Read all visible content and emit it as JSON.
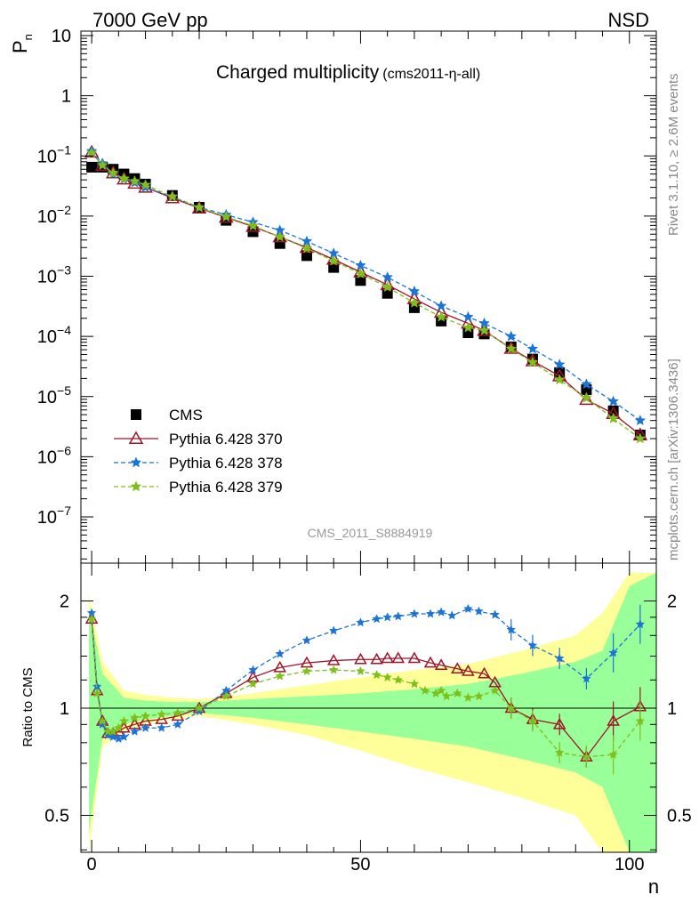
{
  "header": {
    "left": "7000 GeV pp",
    "right": "NSD"
  },
  "side_text": {
    "rivet": "Rivet 3.1.10, ≥ 2.6M events",
    "mcplots": "mcplots.cern.ch [arXiv:1306.3436]"
  },
  "analysis_id": "CMS_2011_S8884919",
  "colors": {
    "cms": "#000000",
    "p370": "#a0142a",
    "p378": "#1b74d8",
    "p379": "#7fbf1a",
    "band_yellow": "#ffff99",
    "band_green": "#99ff99"
  },
  "chart_data": [
    {
      "type": "scatter",
      "title": "Charged multiplicity",
      "subtitle": "(cms2011-η-all)",
      "xlabel": "n",
      "ylabel": "P_n",
      "yscale": "log",
      "ylim": [
        2e-08,
        10
      ],
      "xlim": [
        -2,
        105
      ],
      "ytick_labels": [
        "10",
        "1",
        "10^-1",
        "10^-2",
        "10^-3",
        "10^-4",
        "10^-5",
        "10^-6",
        "10^-7"
      ],
      "legend_position": "bottom-left",
      "series": [
        {
          "name": "CMS",
          "marker": "square",
          "color": "#000000",
          "x": [
            0,
            2,
            4,
            6,
            8,
            10,
            15,
            20,
            25,
            30,
            35,
            40,
            45,
            50,
            55,
            60,
            65,
            70,
            73,
            78,
            82,
            87,
            92,
            97,
            102
          ],
          "y": [
            0.065,
            0.065,
            0.06,
            0.05,
            0.042,
            0.034,
            0.022,
            0.014,
            0.0085,
            0.0055,
            0.0035,
            0.0022,
            0.0014,
            0.00085,
            0.00052,
            0.0003,
            0.00018,
            0.000115,
            0.00011,
            6.7e-05,
            4.2e-05,
            2.5e-05,
            1.3e-05,
            5.8e-06,
            2.3e-06
          ]
        },
        {
          "name": "Pythia 6.428 370",
          "marker": "triangle",
          "color": "#a0142a",
          "line": "solid",
          "x": [
            0,
            2,
            4,
            6,
            8,
            10,
            15,
            20,
            25,
            30,
            35,
            40,
            45,
            50,
            55,
            60,
            65,
            70,
            73,
            78,
            82,
            87,
            92,
            97,
            102
          ],
          "y": [
            0.115,
            0.069,
            0.052,
            0.041,
            0.035,
            0.03,
            0.02,
            0.0135,
            0.0095,
            0.0067,
            0.0045,
            0.003,
            0.0019,
            0.00117,
            0.00072,
            0.00042,
            0.00025,
            0.000165,
            0.000125,
            6.3e-05,
            3.9e-05,
            2.2e-05,
            8.9e-06,
            5.2e-06,
            2.3e-06
          ]
        },
        {
          "name": "Pythia 6.428 378",
          "marker": "star",
          "color": "#1b74d8",
          "line": "dashed",
          "x": [
            0,
            2,
            4,
            6,
            8,
            10,
            15,
            20,
            25,
            30,
            35,
            40,
            45,
            50,
            55,
            60,
            65,
            70,
            73,
            78,
            82,
            87,
            92,
            97,
            102
          ],
          "y": [
            0.12,
            0.075,
            0.05,
            0.041,
            0.036,
            0.03,
            0.021,
            0.014,
            0.0105,
            0.0079,
            0.0058,
            0.0038,
            0.0024,
            0.00151,
            0.00096,
            0.00056,
            0.00032,
            0.00021,
            0.000165,
            0.0001,
            6.2e-05,
            3.4e-05,
            1.6e-05,
            8.3e-06,
            4e-06
          ]
        },
        {
          "name": "Pythia 6.428 379",
          "marker": "star",
          "color": "#7fbf1a",
          "line": "dashed",
          "x": [
            0,
            2,
            4,
            6,
            8,
            10,
            15,
            20,
            25,
            30,
            35,
            40,
            45,
            50,
            55,
            60,
            65,
            70,
            73,
            78,
            82,
            87,
            92,
            97,
            102
          ],
          "y": [
            0.112,
            0.07,
            0.052,
            0.042,
            0.038,
            0.033,
            0.021,
            0.0138,
            0.0097,
            0.0069,
            0.0045,
            0.0029,
            0.0018,
            0.0011,
            0.00066,
            0.00036,
            0.00021,
            0.00014,
            0.000125,
            6.2e-05,
            3.7e-05,
            1.9e-05,
            9.5e-06,
            4.3e-06,
            2e-06
          ]
        }
      ]
    },
    {
      "type": "line",
      "ylabel": "Ratio to CMS",
      "xlabel": "n",
      "yscale": "log",
      "ylim": [
        0.35,
        2.4
      ],
      "xlim": [
        -2,
        105
      ],
      "xtick_labels": [
        "0",
        "50",
        "100"
      ],
      "ytick_labels": [
        "0.5",
        "1",
        "2"
      ],
      "reference_line": 1,
      "band_green": {
        "x": [
          -0.5,
          2,
          6,
          10,
          15,
          20,
          30,
          40,
          50,
          60,
          70,
          80,
          90,
          95,
          100,
          105
        ],
        "lo": [
          0.45,
          0.82,
          0.9,
          0.93,
          0.95,
          0.97,
          0.94,
          0.9,
          0.86,
          0.82,
          0.78,
          0.72,
          0.66,
          0.6,
          0.35,
          0.35
        ],
        "hi": [
          1.9,
          1.25,
          1.07,
          1.05,
          1.04,
          1.04,
          1.06,
          1.08,
          1.1,
          1.13,
          1.17,
          1.25,
          1.35,
          1.45,
          2.2,
          2.4
        ]
      },
      "band_yellow": {
        "x": [
          -0.5,
          2,
          6,
          10,
          15,
          20,
          30,
          40,
          50,
          60,
          70,
          80,
          90,
          95,
          100,
          105
        ],
        "lo": [
          0.35,
          0.78,
          0.86,
          0.9,
          0.93,
          0.95,
          0.9,
          0.84,
          0.76,
          0.68,
          0.62,
          0.56,
          0.5,
          0.35,
          0.35,
          0.35
        ],
        "hi": [
          2.1,
          1.35,
          1.12,
          1.09,
          1.07,
          1.06,
          1.1,
          1.16,
          1.22,
          1.28,
          1.33,
          1.45,
          1.6,
          1.85,
          2.4,
          2.4
        ]
      },
      "series": [
        {
          "name": "Pythia 6.428 370",
          "color": "#a0142a",
          "x": [
            0,
            1,
            2,
            3,
            4,
            5,
            6,
            8,
            10,
            13,
            16,
            20,
            25,
            30,
            35,
            40,
            45,
            50,
            53,
            55,
            57,
            60,
            63,
            65,
            68,
            70,
            73,
            75,
            78,
            82,
            87,
            92,
            97,
            102
          ],
          "y": [
            1.78,
            1.12,
            0.92,
            0.85,
            0.85,
            0.86,
            0.88,
            0.9,
            0.92,
            0.93,
            0.95,
            1.0,
            1.1,
            1.22,
            1.3,
            1.34,
            1.36,
            1.37,
            1.37,
            1.38,
            1.38,
            1.38,
            1.34,
            1.32,
            1.29,
            1.27,
            1.25,
            1.18,
            1.0,
            0.93,
            0.9,
            0.73,
            0.92,
            1.01
          ]
        },
        {
          "name": "Pythia 6.428 378",
          "color": "#1b74d8",
          "x": [
            0,
            1,
            2,
            3,
            4,
            5,
            6,
            8,
            10,
            13,
            16,
            20,
            25,
            30,
            35,
            40,
            45,
            50,
            53,
            55,
            57,
            60,
            63,
            65,
            67,
            70,
            72,
            75,
            78,
            82,
            87,
            92,
            97,
            102
          ],
          "y": [
            1.85,
            1.15,
            0.9,
            0.84,
            0.83,
            0.82,
            0.83,
            0.86,
            0.88,
            0.88,
            0.9,
            0.98,
            1.12,
            1.28,
            1.42,
            1.55,
            1.65,
            1.74,
            1.78,
            1.8,
            1.81,
            1.84,
            1.84,
            1.86,
            1.82,
            1.9,
            1.87,
            1.83,
            1.66,
            1.5,
            1.38,
            1.21,
            1.43,
            1.72
          ]
        },
        {
          "name": "Pythia 6.428 379",
          "color": "#7fbf1a",
          "x": [
            0,
            1,
            2,
            3,
            4,
            5,
            6,
            8,
            10,
            13,
            16,
            20,
            25,
            30,
            35,
            40,
            45,
            50,
            53,
            55,
            57,
            60,
            62,
            64,
            65,
            66,
            68,
            70,
            72,
            75,
            78,
            82,
            87,
            92,
            97,
            102
          ],
          "y": [
            1.78,
            1.1,
            0.92,
            0.86,
            0.86,
            0.88,
            0.92,
            0.94,
            0.95,
            0.96,
            0.97,
            1.0,
            1.08,
            1.17,
            1.23,
            1.27,
            1.28,
            1.27,
            1.24,
            1.22,
            1.2,
            1.17,
            1.12,
            1.1,
            1.12,
            1.08,
            1.1,
            1.07,
            1.08,
            1.12,
            1.0,
            0.92,
            0.75,
            0.73,
            0.74,
            0.92
          ]
        }
      ]
    }
  ]
}
